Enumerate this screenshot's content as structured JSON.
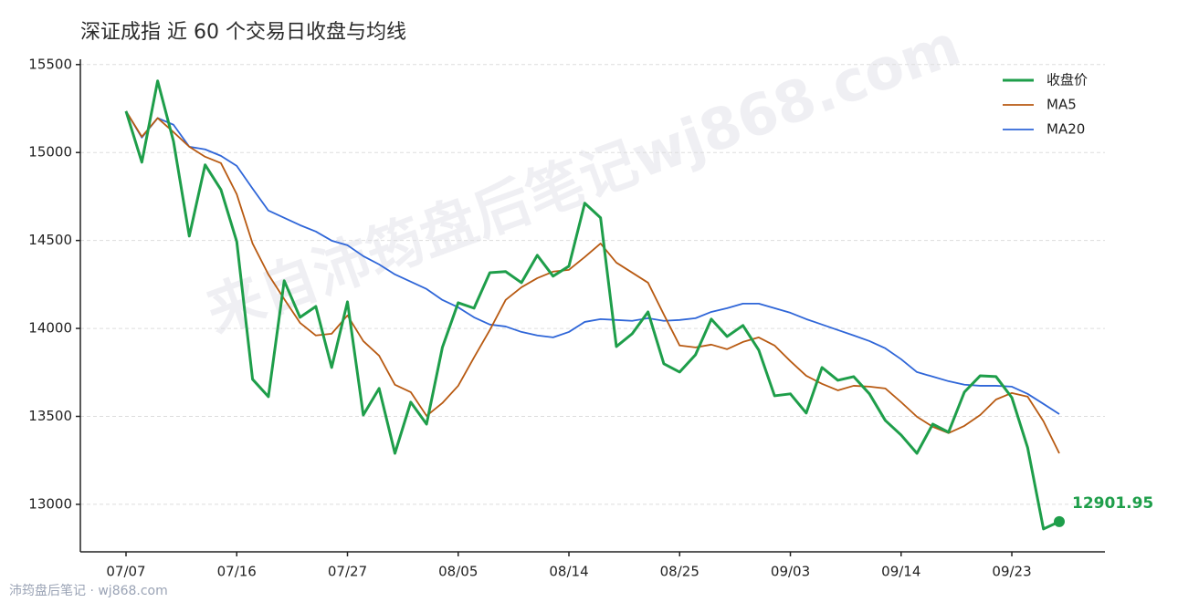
{
  "chart_data": {
    "type": "line",
    "title": "深证成指 近 60 个交易日收盘与均线",
    "watermark": "来自沛筠盘后笔记wj868.com",
    "footer": "沛筠盘后笔记 · wj868.com",
    "categories": [
      "07/07",
      null,
      null,
      null,
      null,
      null,
      null,
      "07/16",
      null,
      null,
      null,
      null,
      null,
      null,
      "07/27",
      null,
      null,
      null,
      null,
      null,
      null,
      "08/05",
      null,
      null,
      null,
      null,
      null,
      null,
      "08/14",
      null,
      null,
      null,
      null,
      null,
      null,
      "08/25",
      null,
      null,
      null,
      null,
      null,
      null,
      "09/03",
      null,
      null,
      null,
      null,
      null,
      null,
      "09/14",
      null,
      null,
      null,
      null,
      null,
      null,
      "09/23",
      null,
      null,
      null
    ],
    "series": [
      {
        "name": "收盘价",
        "color": "#1e9e4a",
        "width": 3,
        "values": [
          15235,
          14945,
          15407,
          15064,
          14525,
          14930,
          14789,
          14494,
          13711,
          13612,
          14271,
          14063,
          14125,
          13778,
          14151,
          13508,
          13659,
          13290,
          13581,
          13456,
          13892,
          14146,
          14115,
          14317,
          14323,
          14260,
          14416,
          14297,
          14354,
          14712,
          14629,
          13897,
          13970,
          14094,
          13799,
          13752,
          13850,
          14053,
          13954,
          14017,
          13877,
          13617,
          13628,
          13519,
          13778,
          13705,
          13726,
          13628,
          13477,
          13394,
          13290,
          13456,
          13410,
          13638,
          13731,
          13726,
          13607,
          13322,
          12860,
          12901.95
        ]
      },
      {
        "name": "MA5",
        "color": "#b85a12",
        "width": 1.8,
        "values": [
          15235,
          15090,
          15196,
          15116,
          15033,
          14976,
          14940,
          14763,
          14483,
          14307,
          14167,
          14032,
          13960,
          13970,
          14074,
          13928,
          13845,
          13680,
          13638,
          13503,
          13576,
          13674,
          13835,
          13991,
          14162,
          14234,
          14286,
          14323,
          14333,
          14406,
          14483,
          14374,
          14317,
          14260,
          14079,
          13903,
          13892,
          13908,
          13882,
          13923,
          13949,
          13903,
          13814,
          13731,
          13685,
          13648,
          13674,
          13669,
          13659,
          13581,
          13498,
          13441,
          13405,
          13446,
          13508,
          13596,
          13633,
          13612,
          13472,
          13290
        ]
      },
      {
        "name": "MA20",
        "color": "#2f66d8",
        "width": 1.8,
        "values": [
          15235,
          15085,
          15196,
          15158,
          15033,
          15018,
          14981,
          14924,
          14795,
          14670,
          14629,
          14587,
          14551,
          14499,
          14473,
          14411,
          14364,
          14307,
          14266,
          14224,
          14162,
          14120,
          14063,
          14022,
          14011,
          13980,
          13960,
          13949,
          13980,
          14037,
          14053,
          14048,
          14043,
          14058,
          14043,
          14048,
          14058,
          14094,
          14115,
          14141,
          14141,
          14115,
          14089,
          14053,
          14022,
          13991,
          13960,
          13928,
          13887,
          13825,
          13752,
          13726,
          13700,
          13680,
          13674,
          13674,
          13669,
          13628,
          13571,
          13513
        ]
      }
    ],
    "ylim": [
      12730,
      15530
    ],
    "yticks": [
      13000,
      13500,
      14000,
      14500,
      15000,
      15500
    ],
    "grid": true,
    "legend": "upper right"
  }
}
